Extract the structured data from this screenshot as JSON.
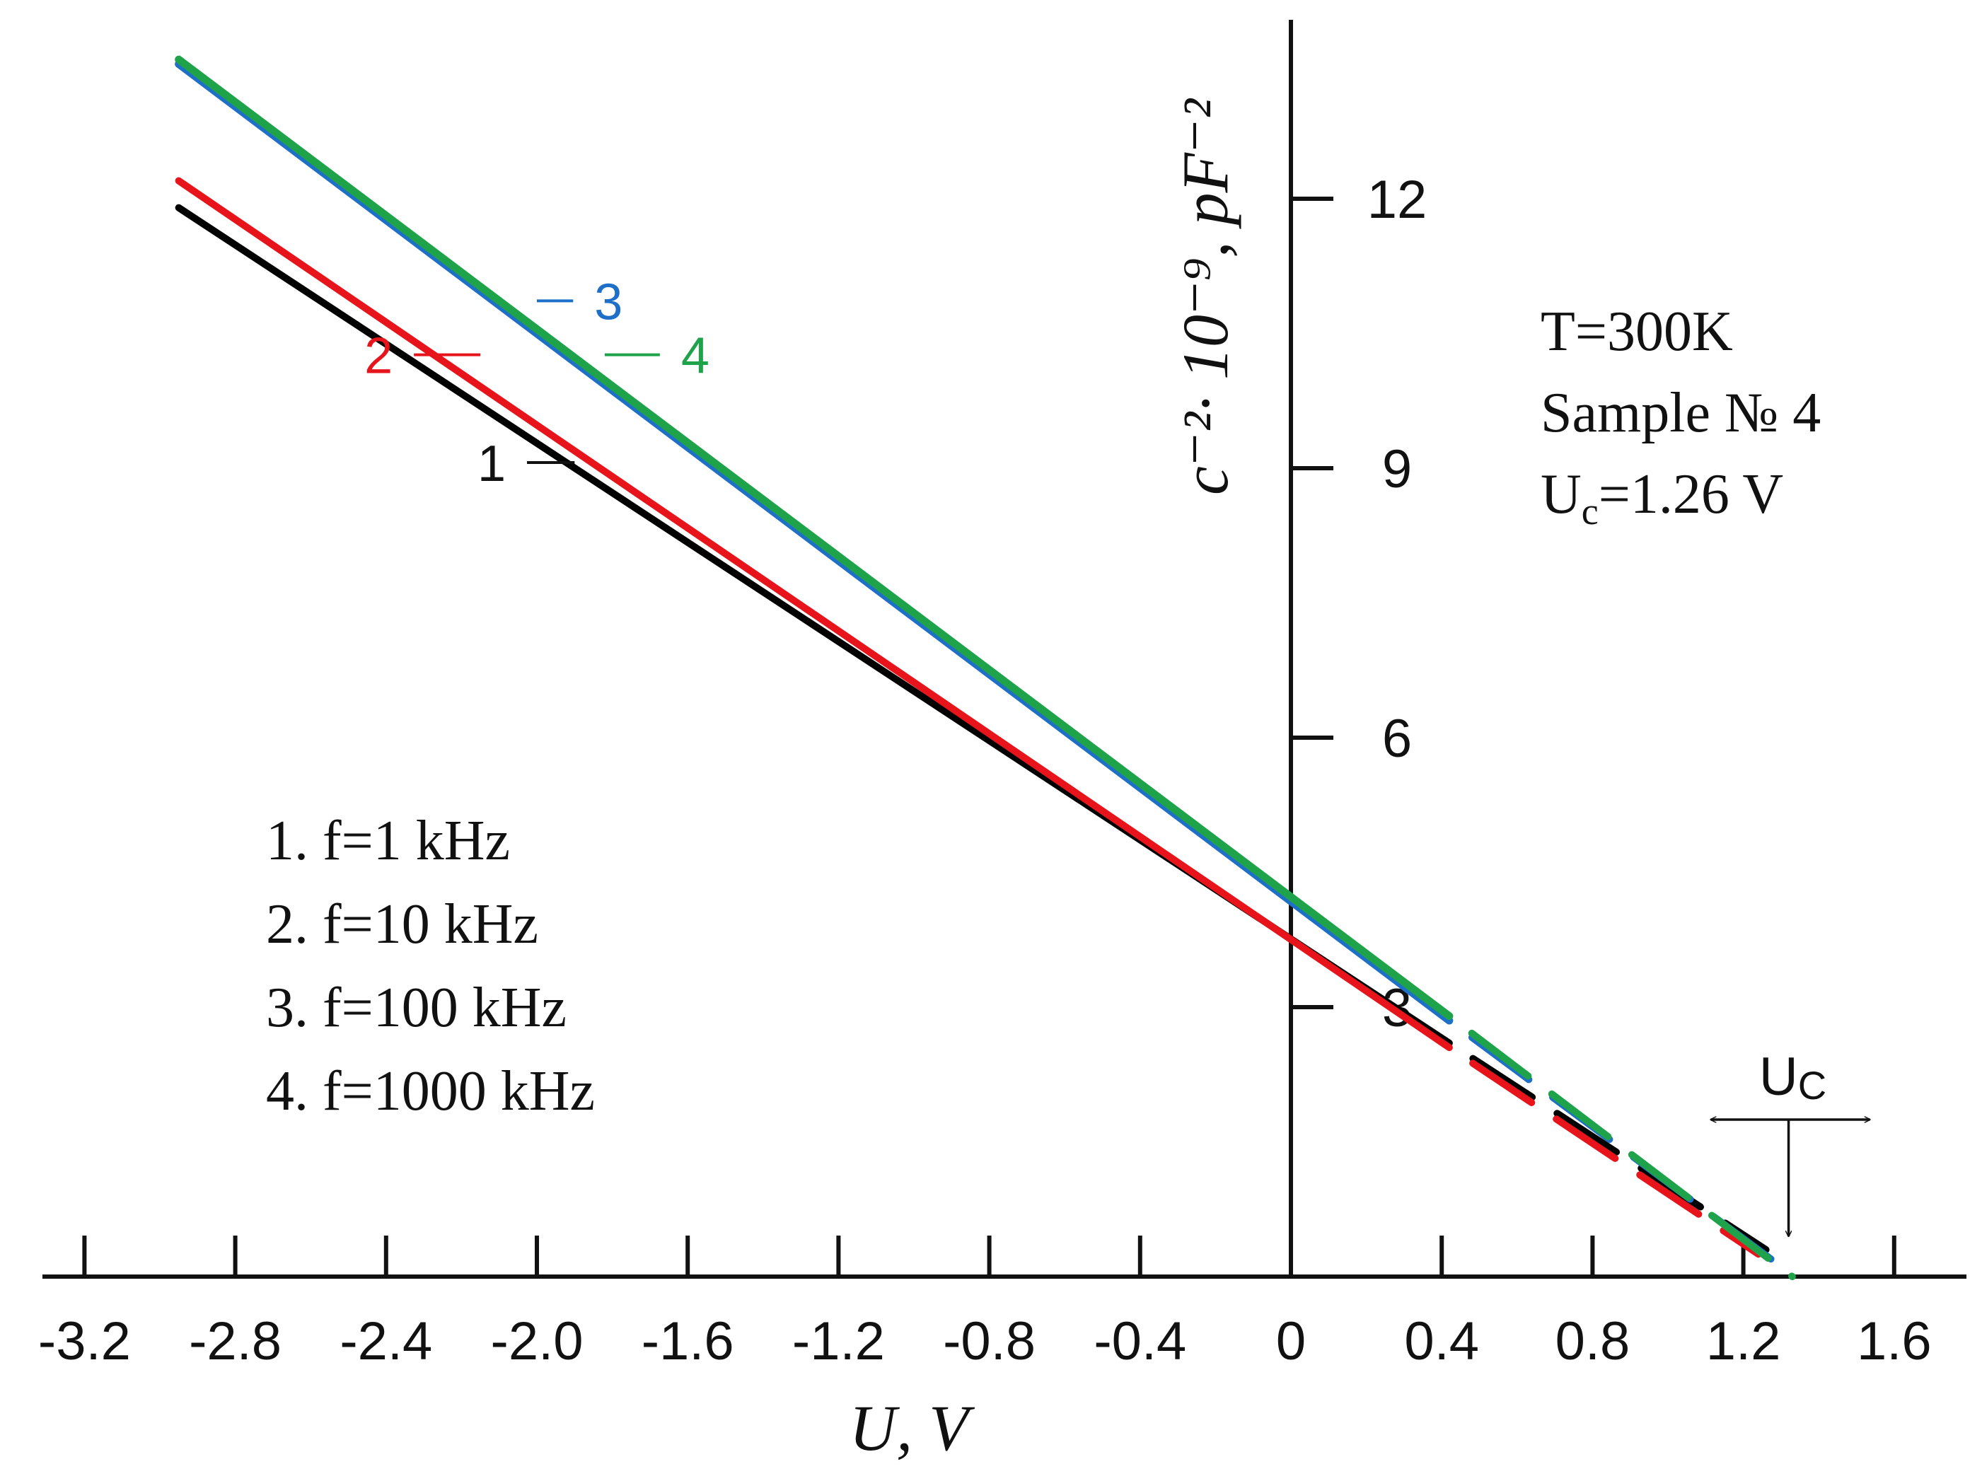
{
  "chart_data": {
    "type": "line",
    "xlabel": "U, V",
    "ylabel": "c⁻²· 10⁻⁹, pF⁻²",
    "xlim": [
      -3.4,
      1.8
    ],
    "ylim": [
      0,
      14
    ],
    "x_ticks": [
      "-3.2",
      "-2.8",
      "-2.4",
      "-2.0",
      "-1.6",
      "-1.2",
      "-0.8",
      "-0.4",
      "0",
      "0.4",
      "0.8",
      "1.2",
      "1.6"
    ],
    "x_tick_values": [
      -3.2,
      -2.8,
      -2.4,
      -2.0,
      -1.6,
      -1.2,
      -0.8,
      -0.4,
      0,
      0.4,
      0.8,
      1.2,
      1.6
    ],
    "y_ticks": [
      "3",
      "6",
      "9",
      "12"
    ],
    "y_tick_values": [
      3,
      6,
      9,
      12
    ],
    "series": [
      {
        "name": "1",
        "color": "#000000",
        "x": [
          -2.95,
          0.42
        ],
        "y": [
          11.9,
          2.6
        ],
        "extrapolation": {
          "x": [
            0.42,
            1.26
          ],
          "y": [
            2.6,
            0.3
          ]
        }
      },
      {
        "name": "2",
        "color": "#e8141b",
        "x": [
          -2.95,
          0.42
        ],
        "y": [
          12.2,
          2.55
        ],
        "extrapolation": {
          "x": [
            0.42,
            1.24
          ],
          "y": [
            2.55,
            0.25
          ]
        }
      },
      {
        "name": "3",
        "color": "#1e6fc8",
        "x": [
          -2.95,
          0.42
        ],
        "y": [
          13.5,
          2.85
        ],
        "extrapolation": {
          "x": [
            0.42,
            1.32
          ],
          "y": [
            2.85,
            0.05
          ]
        }
      },
      {
        "name": "4",
        "color": "#1fa34a",
        "x": [
          -2.95,
          0.42
        ],
        "y": [
          13.55,
          2.9
        ],
        "extrapolation": {
          "x": [
            0.42,
            1.33
          ],
          "y": [
            2.9,
            0.0
          ]
        }
      }
    ],
    "curve_labels": [
      {
        "text": "1",
        "color": "#111111",
        "x": -2.12,
        "y": 9.0,
        "leader_to": [
          -1.9,
          9.0
        ]
      },
      {
        "text": "2",
        "color": "#e8141b",
        "x": -2.42,
        "y": 10.2,
        "leader_to": [
          -2.15,
          10.2
        ]
      },
      {
        "text": "3",
        "color": "#1e6fc8",
        "x": -1.81,
        "y": 10.8,
        "leader_to": [
          -2.0,
          10.8
        ]
      },
      {
        "text": "4",
        "color": "#1fa34a",
        "x": -1.58,
        "y": 10.2,
        "leader_to": [
          -1.82,
          10.2
        ]
      }
    ],
    "legend": [
      "1. f=1 kHz",
      "2. f=10 kHz",
      "3. f=100 kHz",
      "4. f=1000 kHz"
    ],
    "annotations": {
      "temperature": "T=300K",
      "sample": "Sample № 4",
      "uc_prefix": "U",
      "uc_sub": "c",
      "uc_value": "=1.26 V",
      "uc_marker": "U",
      "uc_marker_sub": "C",
      "uc_x": 1.32
    }
  }
}
